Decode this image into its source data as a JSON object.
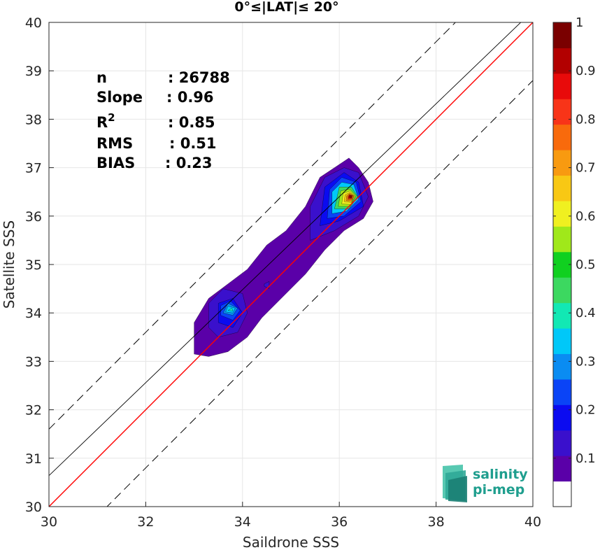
{
  "chart_data": {
    "type": "contour",
    "title": "0°≤|LAT|≤ 20°",
    "xlabel": "Saildrone SSS",
    "ylabel": "Satellite SSS",
    "xlim": [
      30,
      40
    ],
    "ylim": [
      30,
      40
    ],
    "xticks": [
      "30",
      "32",
      "34",
      "36",
      "38",
      "40"
    ],
    "yticks": [
      "30",
      "31",
      "32",
      "33",
      "34",
      "35",
      "36",
      "37",
      "38",
      "39",
      "40"
    ],
    "grid": true,
    "stats": [
      {
        "label": "n",
        "value": ": 26788"
      },
      {
        "label": "Slope",
        "value": ": 0.96"
      },
      {
        "label": "R",
        "sup": "2",
        "value": ": 0.85"
      },
      {
        "label": "RMS",
        "value": ": 0.51"
      },
      {
        "label": "BIAS",
        "value": ": 0.23"
      }
    ],
    "lines": {
      "identity": {
        "slope": 1,
        "intercept": 0,
        "color": "#ff0000"
      },
      "regression": {
        "slope": 0.96,
        "intercept": 1.84,
        "color": "#000000"
      },
      "bounds": [
        {
          "slope": 1,
          "intercept": 1.6,
          "color": "#000000",
          "style": "dashed"
        },
        {
          "slope": 1,
          "intercept": -1.2,
          "color": "#000000",
          "style": "dashed"
        }
      ]
    },
    "density_peaks": [
      {
        "x": 36.2,
        "y": 36.4,
        "max_density": 1.0
      },
      {
        "x": 33.7,
        "y": 34.05,
        "max_density": 0.4
      }
    ],
    "colorbar": {
      "range": [
        0,
        1
      ],
      "ticks": [
        "0.1",
        "0.2",
        "0.3",
        "0.4",
        "0.5",
        "0.6",
        "0.7",
        "0.8",
        "0.9",
        "1"
      ],
      "colors": [
        "#ffffff",
        "#5a00a8",
        "#3a10cc",
        "#0b0bf0",
        "#0a44f6",
        "#0a8cf2",
        "#00c8f8",
        "#12e8b4",
        "#3cd860",
        "#10d020",
        "#a0e81a",
        "#f0f020",
        "#f8c814",
        "#f89a10",
        "#f86a0c",
        "#f83418",
        "#e80a0a",
        "#b20000",
        "#7a0000"
      ]
    }
  },
  "logo": {
    "line1": "salinity",
    "line2": "pi-mep"
  }
}
